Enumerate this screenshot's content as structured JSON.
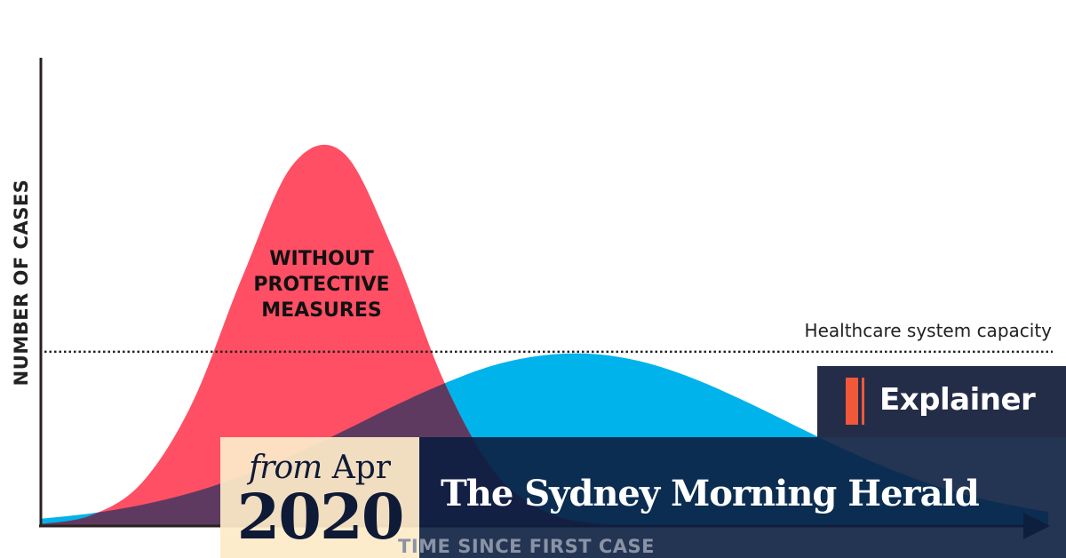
{
  "chart_data": {
    "type": "area",
    "title": "",
    "xlabel": "TIME SINCE FIRST CASE",
    "ylabel": "NUMBER OF CASES",
    "xlim": [
      0,
      100
    ],
    "ylim": [
      0,
      122
    ],
    "grid": false,
    "x": [
      0,
      5,
      10,
      15,
      20,
      25,
      30,
      35,
      40,
      45,
      50,
      55,
      60,
      65,
      70,
      75,
      80,
      85,
      90,
      95,
      100
    ],
    "series": [
      {
        "name": "WITHOUT PROTECTIVE MEASURES",
        "color": "#ff4f64",
        "values": [
          0.5,
          2.8,
          11.2,
          31.9,
          64.9,
          94.1,
          97.3,
          71.8,
          37.8,
          14.2,
          3.8,
          0.7,
          0.1,
          0,
          0,
          0,
          0,
          0,
          0,
          0,
          0
        ]
      },
      {
        "color": "#00b3ea",
        "values": [
          1.9,
          3.3,
          5.5,
          8.7,
          13.1,
          18.5,
          24.7,
          31.2,
          37.1,
          41.9,
          44.5,
          44.8,
          42.6,
          38.2,
          32.4,
          26.0,
          19.7,
          14.1,
          9.5,
          6.1,
          3.7
        ]
      }
    ],
    "overlap_color": "#5e3a60",
    "reference_line": {
      "label": "Healthcare system capacity",
      "value": 45.4,
      "style": "dotted"
    }
  },
  "badge": {
    "label": "Explainer",
    "accent_color": "#f2573a",
    "background": "#232d48"
  },
  "date": {
    "prefix": "from",
    "month": "Apr",
    "year": "2020"
  },
  "masthead": {
    "title": "The Sydney Morning Herald"
  }
}
